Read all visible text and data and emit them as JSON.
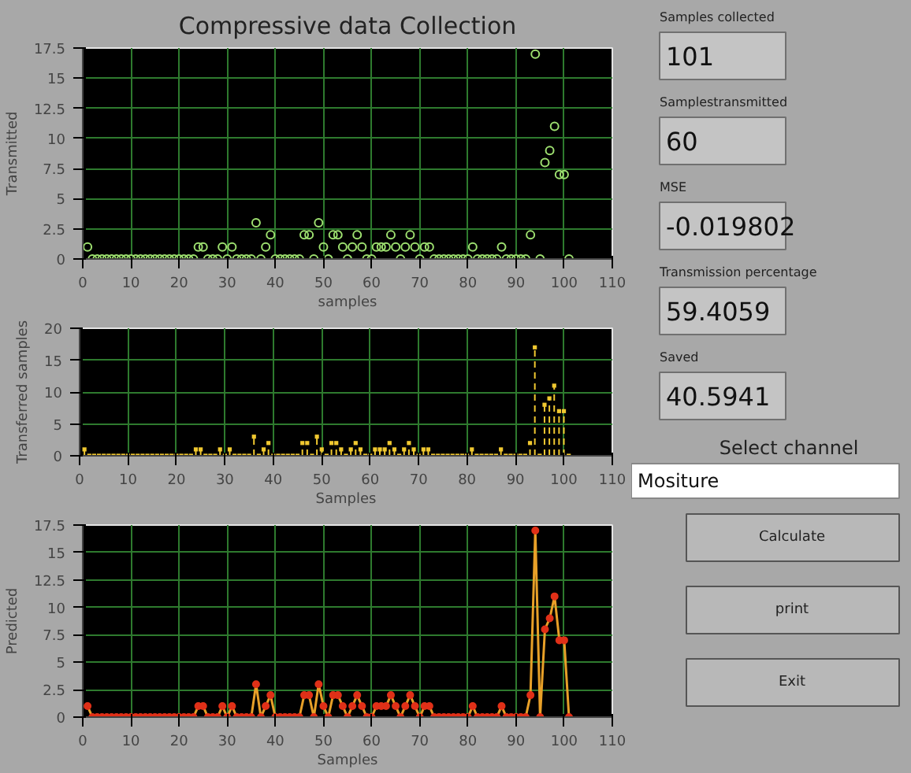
{
  "chart_data": [
    {
      "type": "scatter",
      "title": "Compressive data Collection",
      "xlabel": "samples",
      "ylabel": "Transmitted",
      "marker": "circle",
      "grid": true,
      "x": [
        1,
        2,
        3,
        4,
        5,
        6,
        7,
        8,
        9,
        10,
        11,
        12,
        13,
        14,
        15,
        16,
        17,
        18,
        19,
        20,
        21,
        22,
        23,
        24,
        25,
        26,
        27,
        28,
        29,
        30,
        31,
        32,
        33,
        34,
        35,
        36,
        37,
        38,
        39,
        40,
        41,
        42,
        43,
        44,
        45,
        46,
        47,
        48,
        49,
        50,
        51,
        52,
        53,
        54,
        55,
        56,
        57,
        58,
        59,
        60,
        61,
        62,
        63,
        64,
        65,
        66,
        67,
        68,
        69,
        70,
        71,
        72,
        73,
        74,
        75,
        76,
        77,
        78,
        79,
        80,
        81,
        82,
        83,
        84,
        85,
        86,
        87,
        88,
        89,
        90,
        91,
        92,
        93,
        94,
        95,
        96,
        97,
        98,
        99,
        100,
        101
      ],
      "series": [
        {
          "color": "#9ee070",
          "values": [
            1,
            0,
            0,
            0,
            0,
            0,
            0,
            0,
            0,
            0,
            0,
            0,
            0,
            0,
            0,
            0,
            0,
            0,
            0,
            0,
            0,
            0,
            0,
            1,
            1,
            0,
            0,
            0,
            1,
            0,
            1,
            0,
            0,
            0,
            0,
            3,
            0,
            1,
            2,
            0,
            0,
            0,
            0,
            0,
            0,
            2,
            2,
            0,
            3,
            1,
            0,
            2,
            2,
            1,
            0,
            1,
            2,
            1,
            0,
            0,
            1,
            1,
            1,
            2,
            1,
            0,
            1,
            2,
            1,
            0,
            1,
            1,
            0,
            0,
            0,
            0,
            0,
            0,
            0,
            0,
            1,
            0,
            0,
            0,
            0,
            0,
            1,
            0,
            0,
            0,
            0,
            0,
            2,
            17,
            0,
            8,
            9,
            11,
            7,
            7,
            0
          ]
        }
      ],
      "xlim": [
        0,
        110
      ],
      "xticks": [
        0,
        10,
        20,
        30,
        40,
        50,
        60,
        70,
        80,
        90,
        100,
        110
      ],
      "ylim": [
        0,
        17.5
      ],
      "yticks": [
        0,
        2.5,
        5,
        7.5,
        10,
        12.5,
        15,
        17.5
      ]
    },
    {
      "type": "lollipop",
      "xlabel": "Samples",
      "ylabel": "Transferred samples",
      "marker": "square",
      "line_style": "dashed",
      "grid": true,
      "x": [
        1,
        2,
        3,
        4,
        5,
        6,
        7,
        8,
        9,
        10,
        11,
        12,
        13,
        14,
        15,
        16,
        17,
        18,
        19,
        20,
        21,
        22,
        23,
        24,
        25,
        26,
        27,
        28,
        29,
        30,
        31,
        32,
        33,
        34,
        35,
        36,
        37,
        38,
        39,
        40,
        41,
        42,
        43,
        44,
        45,
        46,
        47,
        48,
        49,
        50,
        51,
        52,
        53,
        54,
        55,
        56,
        57,
        58,
        59,
        60,
        61,
        62,
        63,
        64,
        65,
        66,
        67,
        68,
        69,
        70,
        71,
        72,
        73,
        74,
        75,
        76,
        77,
        78,
        79,
        80,
        81,
        82,
        83,
        84,
        85,
        86,
        87,
        88,
        89,
        90,
        91,
        92,
        93,
        94,
        95,
        96,
        97,
        98,
        99,
        100,
        101
      ],
      "series": [
        {
          "color": "#f0c830",
          "values": [
            1,
            0,
            0,
            0,
            0,
            0,
            0,
            0,
            0,
            0,
            0,
            0,
            0,
            0,
            0,
            0,
            0,
            0,
            0,
            0,
            0,
            0,
            0,
            1,
            1,
            0,
            0,
            0,
            1,
            0,
            1,
            0,
            0,
            0,
            0,
            3,
            0,
            1,
            2,
            0,
            0,
            0,
            0,
            0,
            0,
            2,
            2,
            0,
            3,
            1,
            0,
            2,
            2,
            1,
            0,
            1,
            2,
            1,
            0,
            0,
            1,
            1,
            1,
            2,
            1,
            0,
            1,
            2,
            1,
            0,
            1,
            1,
            0,
            0,
            0,
            0,
            0,
            0,
            0,
            0,
            1,
            0,
            0,
            0,
            0,
            0,
            1,
            0,
            0,
            0,
            0,
            0,
            2,
            17,
            0,
            8,
            9,
            11,
            7,
            7,
            0
          ]
        }
      ],
      "xlim": [
        0,
        110
      ],
      "xticks": [
        0,
        10,
        20,
        30,
        40,
        50,
        60,
        70,
        80,
        90,
        100,
        110
      ],
      "ylim": [
        0,
        20
      ],
      "yticks": [
        0,
        5,
        10,
        15,
        20
      ]
    },
    {
      "type": "line",
      "xlabel": "Samples",
      "ylabel": "Predicted",
      "marker": "circle",
      "grid": true,
      "x": [
        1,
        2,
        3,
        4,
        5,
        6,
        7,
        8,
        9,
        10,
        11,
        12,
        13,
        14,
        15,
        16,
        17,
        18,
        19,
        20,
        21,
        22,
        23,
        24,
        25,
        26,
        27,
        28,
        29,
        30,
        31,
        32,
        33,
        34,
        35,
        36,
        37,
        38,
        39,
        40,
        41,
        42,
        43,
        44,
        45,
        46,
        47,
        48,
        49,
        50,
        51,
        52,
        53,
        54,
        55,
        56,
        57,
        58,
        59,
        60,
        61,
        62,
        63,
        64,
        65,
        66,
        67,
        68,
        69,
        70,
        71,
        72,
        73,
        74,
        75,
        76,
        77,
        78,
        79,
        80,
        81,
        82,
        83,
        84,
        85,
        86,
        87,
        88,
        89,
        90,
        91,
        92,
        93,
        94,
        95,
        96,
        97,
        98,
        99,
        100,
        101
      ],
      "series": [
        {
          "color": "#e8a028",
          "values": [
            1,
            0,
            0,
            0,
            0,
            0,
            0,
            0,
            0,
            0,
            0,
            0,
            0,
            0,
            0,
            0,
            0,
            0,
            0,
            0,
            0,
            0,
            0,
            1,
            1,
            0,
            0,
            0,
            1,
            0,
            1,
            0,
            0,
            0,
            0,
            3,
            0,
            1,
            2,
            0,
            0,
            0,
            0,
            0,
            0,
            2,
            2,
            0,
            3,
            1,
            0,
            2,
            2,
            1,
            0,
            1,
            2,
            1,
            0,
            0,
            1,
            1,
            1,
            2,
            1,
            0,
            1,
            2,
            1,
            0,
            1,
            1,
            0,
            0,
            0,
            0,
            0,
            0,
            0,
            0,
            1,
            0,
            0,
            0,
            0,
            0,
            1,
            0,
            0,
            0,
            0,
            0,
            2,
            17,
            0,
            8,
            9,
            11,
            7,
            7,
            0
          ]
        }
      ],
      "xlim": [
        0,
        110
      ],
      "xticks": [
        0,
        10,
        20,
        30,
        40,
        50,
        60,
        70,
        80,
        90,
        100,
        110
      ],
      "ylim": [
        0,
        17.5
      ],
      "yticks": [
        0,
        2.5,
        5,
        7.5,
        10,
        12.5,
        15,
        17.5
      ]
    },
    {
      "type": "other",
      "annotations": [
        "Samples collected",
        "101",
        "Samplestransmitted",
        "60",
        "MSE",
        "-0.019802",
        "Transmission percentage",
        "59.4059",
        "Saved",
        "40.5941",
        "Select channel",
        "Mositure",
        "Calculate",
        "print",
        "Exit"
      ]
    }
  ]
}
